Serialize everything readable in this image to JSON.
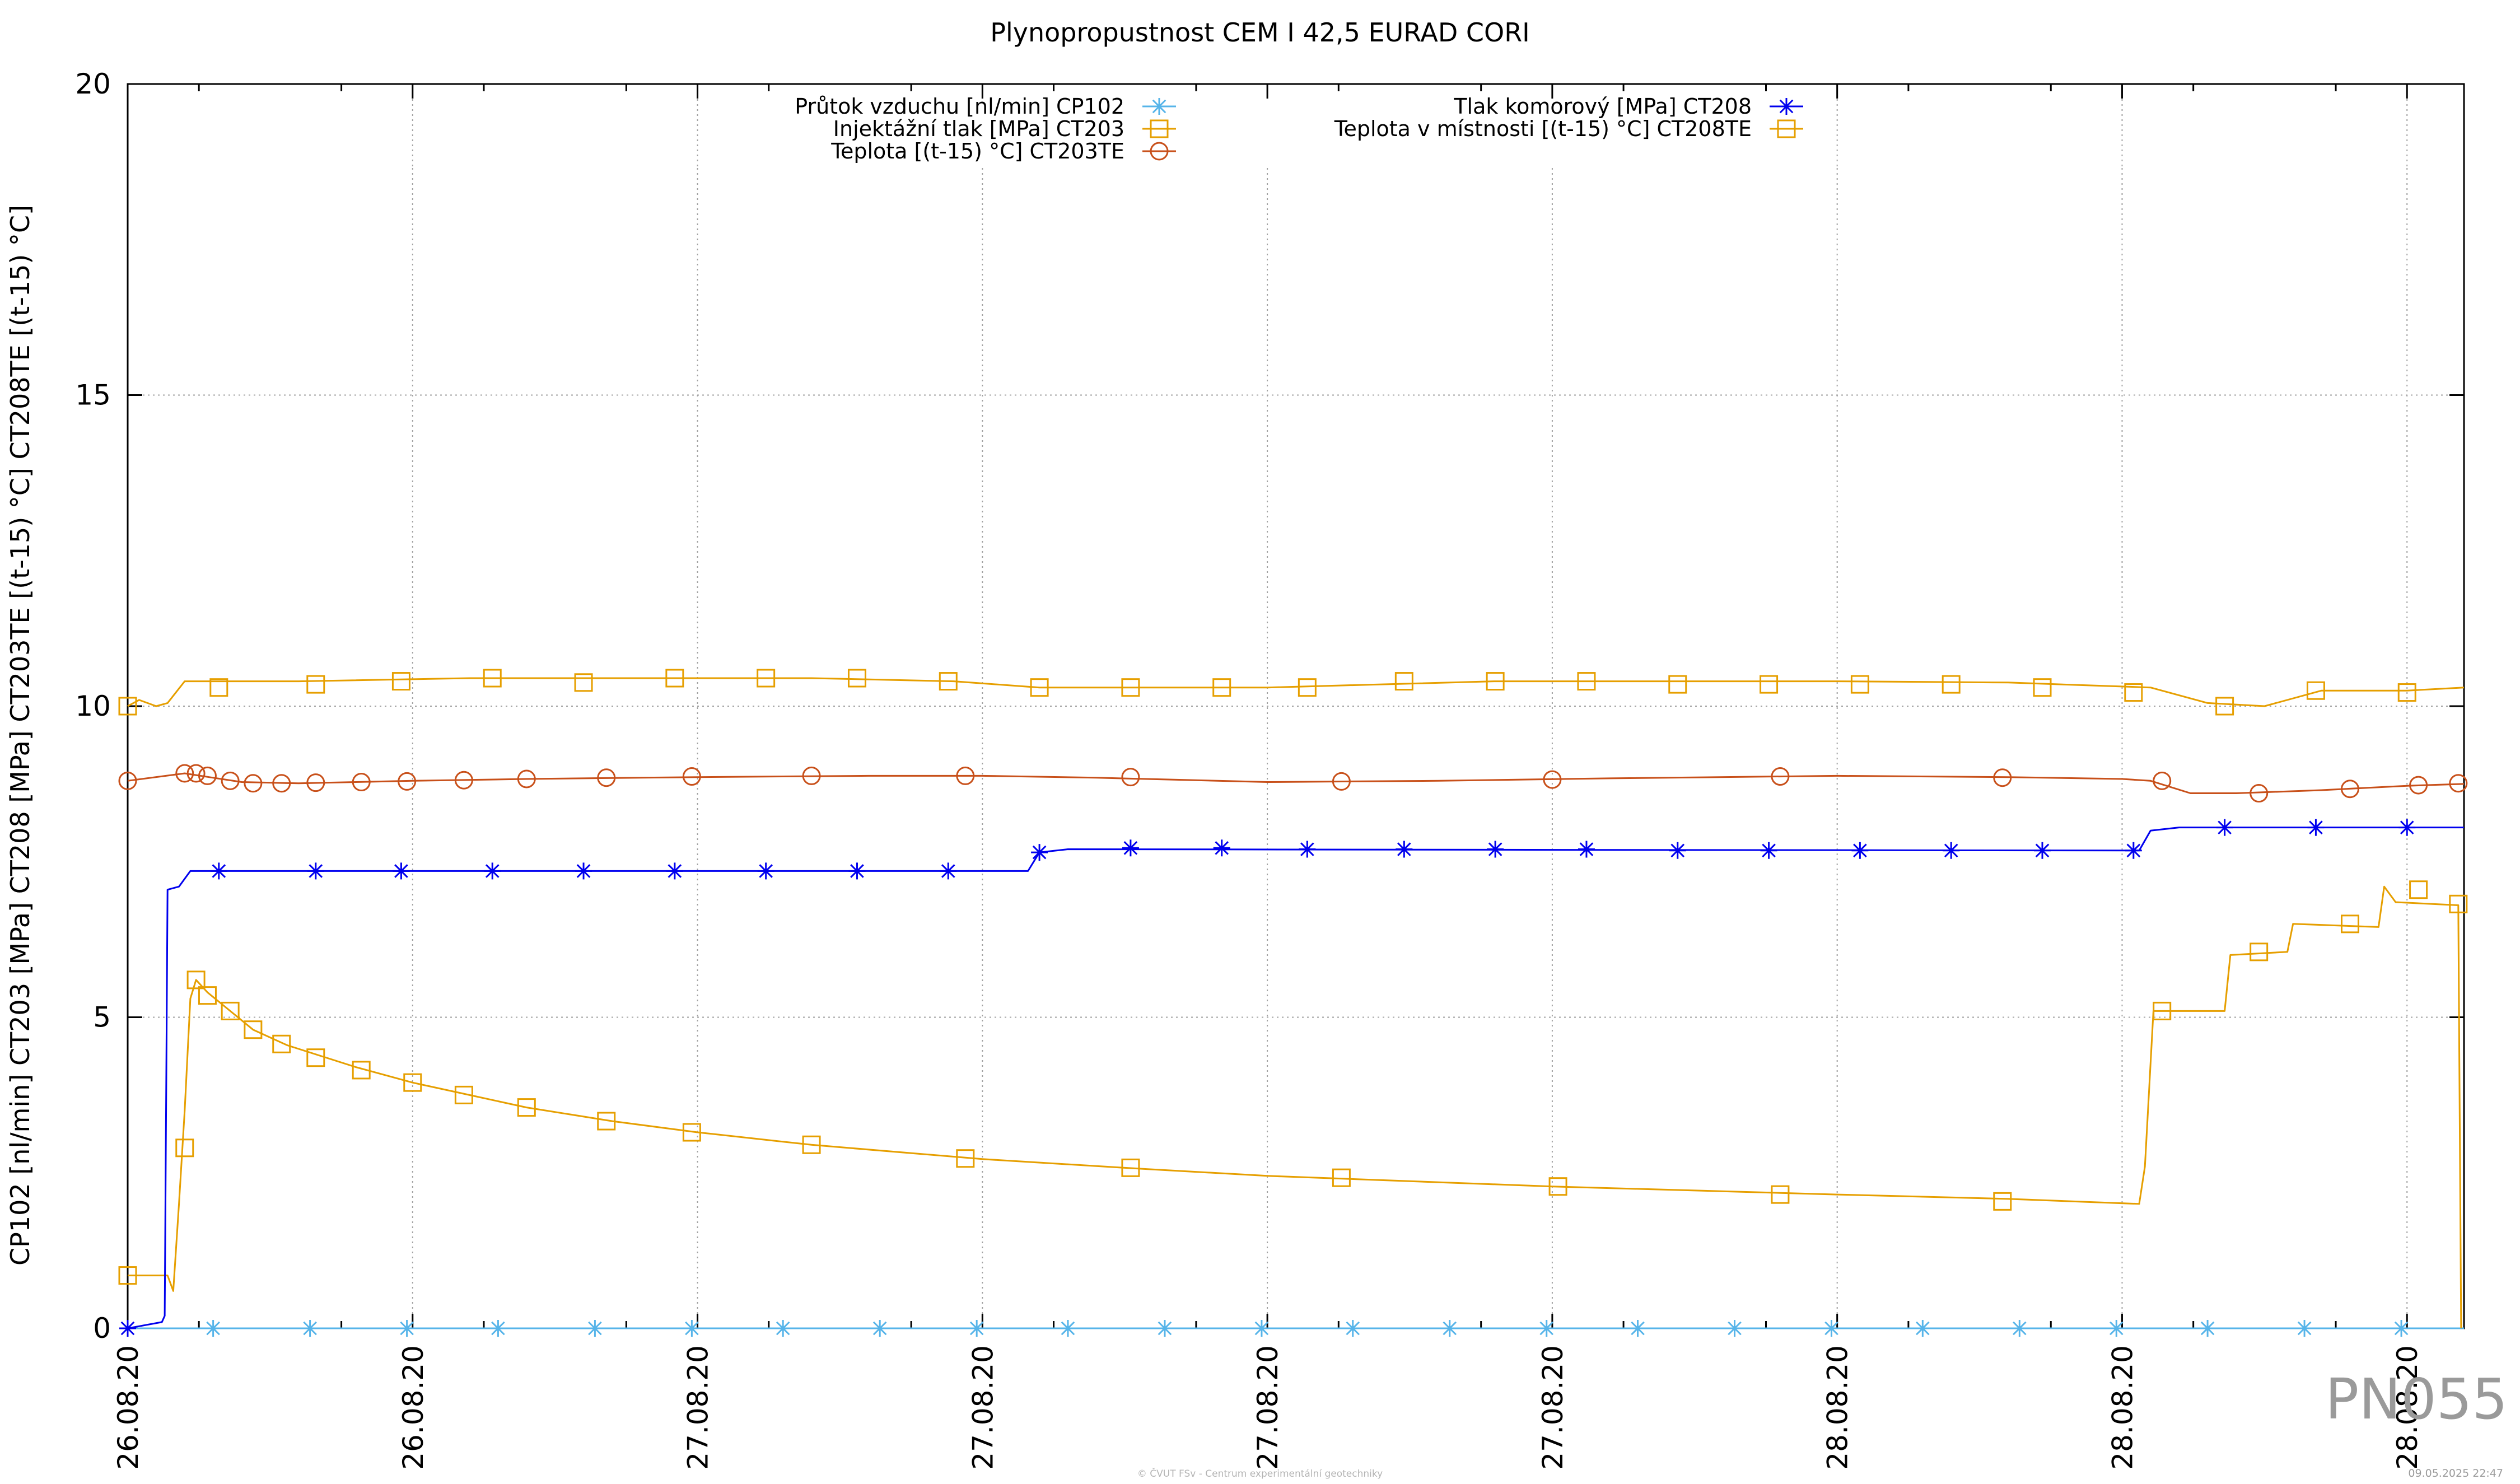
{
  "chart_data": {
    "type": "line",
    "title": "Plynopropustnost CEM I 42,5 EURAD CORI",
    "ylabel": "CP102 [nl/min] CT203 [MPa] CT208 [MPa] CT203TE [(t-15) °C] CT208TE [(t-15) °C]",
    "xlabel": "",
    "ylim": [
      0,
      20
    ],
    "y_ticks": [
      "0",
      "5",
      "10",
      "15",
      "20"
    ],
    "x_range": [
      0,
      4.1
    ],
    "x_ticks": [
      {
        "x": 0.0,
        "label": "26.08.20"
      },
      {
        "x": 0.5,
        "label": "26.08.20"
      },
      {
        "x": 1.0,
        "label": "27.08.20"
      },
      {
        "x": 1.5,
        "label": "27.08.20"
      },
      {
        "x": 2.0,
        "label": "27.08.20"
      },
      {
        "x": 2.5,
        "label": "27.08.20"
      },
      {
        "x": 3.0,
        "label": "28.08.20"
      },
      {
        "x": 3.5,
        "label": "28.08.20"
      },
      {
        "x": 4.0,
        "label": "28.08.20"
      }
    ],
    "grid": true,
    "legend_position": "top-center",
    "series": [
      {
        "name": "Průtok vzduchu [nl/min] CP102",
        "color": "#56b4e9",
        "marker": "asterisk",
        "points": [
          [
            0,
            0
          ],
          [
            4.1,
            0
          ]
        ],
        "marker_points": [
          [
            0.15,
            0
          ],
          [
            0.32,
            0
          ],
          [
            0.49,
            0
          ],
          [
            0.65,
            0
          ],
          [
            0.82,
            0
          ],
          [
            0.99,
            0
          ],
          [
            1.15,
            0
          ],
          [
            1.32,
            0
          ],
          [
            1.49,
            0
          ],
          [
            1.65,
            0
          ],
          [
            1.82,
            0
          ],
          [
            1.99,
            0
          ],
          [
            2.15,
            0
          ],
          [
            2.32,
            0
          ],
          [
            2.49,
            0
          ],
          [
            2.65,
            0
          ],
          [
            2.82,
            0
          ],
          [
            2.99,
            0
          ],
          [
            3.15,
            0
          ],
          [
            3.32,
            0
          ],
          [
            3.49,
            0
          ],
          [
            3.65,
            0
          ],
          [
            3.82,
            0
          ],
          [
            3.99,
            0
          ]
        ]
      },
      {
        "name": "Injektážní tlak [MPa] CT203",
        "color": "#e69f00",
        "marker": "square",
        "points": [
          [
            0,
            0.85
          ],
          [
            0.07,
            0.85
          ],
          [
            0.08,
            0.6
          ],
          [
            0.09,
            2.0
          ],
          [
            0.1,
            3.5
          ],
          [
            0.11,
            5.3
          ],
          [
            0.12,
            5.6
          ],
          [
            0.14,
            5.4
          ],
          [
            0.18,
            5.1
          ],
          [
            0.22,
            4.8
          ],
          [
            0.28,
            4.55
          ],
          [
            0.4,
            4.2
          ],
          [
            0.5,
            3.95
          ],
          [
            0.6,
            3.75
          ],
          [
            0.7,
            3.55
          ],
          [
            0.85,
            3.33
          ],
          [
            1.0,
            3.15
          ],
          [
            1.2,
            2.95
          ],
          [
            1.5,
            2.72
          ],
          [
            1.75,
            2.58
          ],
          [
            2.0,
            2.45
          ],
          [
            2.5,
            2.28
          ],
          [
            3.0,
            2.15
          ],
          [
            3.3,
            2.08
          ],
          [
            3.53,
            2.0
          ],
          [
            3.54,
            2.6
          ],
          [
            3.555,
            5.1
          ],
          [
            3.68,
            5.1
          ],
          [
            3.69,
            6.0
          ],
          [
            3.79,
            6.05
          ],
          [
            3.8,
            6.5
          ],
          [
            3.95,
            6.45
          ],
          [
            3.96,
            7.1
          ],
          [
            3.98,
            6.85
          ],
          [
            4.09,
            6.8
          ],
          [
            4.095,
            0
          ]
        ],
        "marker_points": [
          [
            0,
            0.85
          ],
          [
            0.1,
            2.9
          ],
          [
            0.12,
            5.6
          ],
          [
            0.14,
            5.35
          ],
          [
            0.18,
            5.1
          ],
          [
            0.22,
            4.8
          ],
          [
            0.27,
            4.57
          ],
          [
            0.33,
            4.35
          ],
          [
            0.41,
            4.15
          ],
          [
            0.5,
            3.95
          ],
          [
            0.59,
            3.75
          ],
          [
            0.7,
            3.55
          ],
          [
            0.84,
            3.33
          ],
          [
            0.99,
            3.15
          ],
          [
            1.2,
            2.95
          ],
          [
            1.47,
            2.73
          ],
          [
            1.76,
            2.58
          ],
          [
            2.13,
            2.42
          ],
          [
            2.51,
            2.28
          ],
          [
            2.9,
            2.15
          ],
          [
            3.29,
            2.04
          ],
          [
            3.57,
            5.1
          ],
          [
            3.74,
            6.05
          ],
          [
            3.9,
            6.5
          ],
          [
            4.02,
            7.05
          ],
          [
            4.09,
            6.82
          ]
        ]
      },
      {
        "name": "Teplota [(t-15) °C] CT203TE",
        "color": "#c8501a",
        "marker": "circle",
        "points": [
          [
            0,
            8.8
          ],
          [
            0.1,
            8.92
          ],
          [
            0.15,
            8.85
          ],
          [
            0.2,
            8.78
          ],
          [
            0.3,
            8.76
          ],
          [
            0.5,
            8.8
          ],
          [
            0.7,
            8.83
          ],
          [
            1.0,
            8.86
          ],
          [
            1.3,
            8.88
          ],
          [
            1.5,
            8.88
          ],
          [
            1.7,
            8.85
          ],
          [
            2.0,
            8.78
          ],
          [
            2.3,
            8.8
          ],
          [
            2.6,
            8.84
          ],
          [
            3.0,
            8.88
          ],
          [
            3.3,
            8.86
          ],
          [
            3.5,
            8.83
          ],
          [
            3.55,
            8.8
          ],
          [
            3.62,
            8.6
          ],
          [
            3.7,
            8.6
          ],
          [
            3.85,
            8.65
          ],
          [
            4.0,
            8.72
          ],
          [
            4.1,
            8.75
          ]
        ],
        "marker_points": [
          [
            0,
            8.8
          ],
          [
            0.1,
            8.92
          ],
          [
            0.12,
            8.92
          ],
          [
            0.14,
            8.88
          ],
          [
            0.18,
            8.8
          ],
          [
            0.22,
            8.76
          ],
          [
            0.27,
            8.76
          ],
          [
            0.33,
            8.77
          ],
          [
            0.41,
            8.78
          ],
          [
            0.49,
            8.79
          ],
          [
            0.59,
            8.81
          ],
          [
            0.7,
            8.83
          ],
          [
            0.84,
            8.85
          ],
          [
            0.99,
            8.87
          ],
          [
            1.2,
            8.88
          ],
          [
            1.47,
            8.88
          ],
          [
            1.76,
            8.86
          ],
          [
            2.13,
            8.79
          ],
          [
            2.5,
            8.82
          ],
          [
            2.9,
            8.87
          ],
          [
            3.29,
            8.85
          ],
          [
            3.57,
            8.8
          ],
          [
            3.74,
            8.6
          ],
          [
            3.9,
            8.67
          ],
          [
            4.02,
            8.73
          ],
          [
            4.09,
            8.76
          ]
        ]
      },
      {
        "name": "Tlak komorový [MPa] CT208",
        "color": "#0000ee",
        "marker": "asterisk",
        "points": [
          [
            0,
            0
          ],
          [
            0.06,
            0.1
          ],
          [
            0.065,
            0.2
          ],
          [
            0.07,
            7.05
          ],
          [
            0.09,
            7.1
          ],
          [
            0.11,
            7.35
          ],
          [
            1.58,
            7.35
          ],
          [
            1.6,
            7.65
          ],
          [
            1.65,
            7.7
          ],
          [
            3.53,
            7.68
          ],
          [
            3.55,
            8.0
          ],
          [
            3.6,
            8.05
          ],
          [
            4.1,
            8.05
          ]
        ],
        "marker_points": [
          [
            0,
            0
          ],
          [
            0.16,
            7.35
          ],
          [
            0.33,
            7.35
          ],
          [
            0.48,
            7.35
          ],
          [
            0.64,
            7.35
          ],
          [
            0.8,
            7.35
          ],
          [
            0.96,
            7.35
          ],
          [
            1.12,
            7.35
          ],
          [
            1.28,
            7.35
          ],
          [
            1.44,
            7.35
          ],
          [
            1.6,
            7.65
          ],
          [
            1.76,
            7.72
          ],
          [
            1.92,
            7.72
          ],
          [
            2.07,
            7.7
          ],
          [
            2.24,
            7.7
          ],
          [
            2.4,
            7.7
          ],
          [
            2.56,
            7.7
          ],
          [
            2.72,
            7.68
          ],
          [
            2.88,
            7.68
          ],
          [
            3.04,
            7.68
          ],
          [
            3.2,
            7.68
          ],
          [
            3.36,
            7.68
          ],
          [
            3.52,
            7.68
          ],
          [
            3.68,
            8.05
          ],
          [
            3.84,
            8.05
          ],
          [
            4.0,
            8.05
          ]
        ]
      },
      {
        "name": "Teplota v místnosti [(t-15) °C] CT208TE",
        "color": "#e69f00",
        "marker": "square",
        "points": [
          [
            0,
            10.0
          ],
          [
            0.02,
            10.1
          ],
          [
            0.05,
            10.0
          ],
          [
            0.07,
            10.05
          ],
          [
            0.1,
            10.4
          ],
          [
            0.3,
            10.4
          ],
          [
            0.6,
            10.45
          ],
          [
            1.0,
            10.45
          ],
          [
            1.2,
            10.45
          ],
          [
            1.45,
            10.4
          ],
          [
            1.6,
            10.3
          ],
          [
            1.85,
            10.3
          ],
          [
            2.0,
            10.3
          ],
          [
            2.2,
            10.35
          ],
          [
            2.4,
            10.4
          ],
          [
            2.7,
            10.4
          ],
          [
            3.0,
            10.4
          ],
          [
            3.3,
            10.38
          ],
          [
            3.55,
            10.3
          ],
          [
            3.65,
            10.05
          ],
          [
            3.75,
            10.0
          ],
          [
            3.85,
            10.25
          ],
          [
            4.0,
            10.25
          ],
          [
            4.1,
            10.3
          ]
        ],
        "marker_points": [
          [
            0,
            10.0
          ],
          [
            0.16,
            10.3
          ],
          [
            0.33,
            10.35
          ],
          [
            0.48,
            10.4
          ],
          [
            0.64,
            10.45
          ],
          [
            0.8,
            10.38
          ],
          [
            0.96,
            10.45
          ],
          [
            1.12,
            10.45
          ],
          [
            1.28,
            10.45
          ],
          [
            1.44,
            10.4
          ],
          [
            1.6,
            10.3
          ],
          [
            1.76,
            10.3
          ],
          [
            1.92,
            10.3
          ],
          [
            2.07,
            10.3
          ],
          [
            2.24,
            10.4
          ],
          [
            2.4,
            10.4
          ],
          [
            2.56,
            10.4
          ],
          [
            2.72,
            10.35
          ],
          [
            2.88,
            10.35
          ],
          [
            3.04,
            10.35
          ],
          [
            3.2,
            10.35
          ],
          [
            3.36,
            10.3
          ],
          [
            3.52,
            10.22
          ],
          [
            3.68,
            10.0
          ],
          [
            3.84,
            10.25
          ],
          [
            4.0,
            10.22
          ]
        ]
      }
    ]
  },
  "watermark": {
    "id": "PN055",
    "credit": "© ČVUT FSv - Centrum experimentální geotechniky",
    "timestamp": "09.05.2025 22:47"
  }
}
